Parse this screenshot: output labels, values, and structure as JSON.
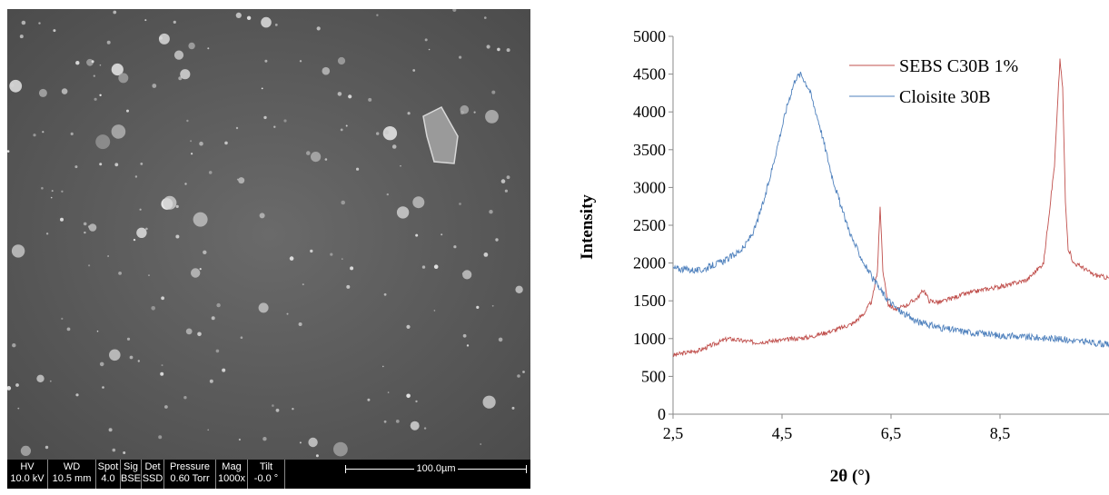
{
  "sem": {
    "columns": [
      {
        "header": "HV",
        "value": "10.0 kV"
      },
      {
        "header": "WD",
        "value": "10.5 mm"
      },
      {
        "header": "Spot",
        "value": "4.0"
      },
      {
        "header": "Sig",
        "value": "BSE"
      },
      {
        "header": "Det",
        "value": "SSD"
      },
      {
        "header": "Pressure",
        "value": "0.60 Torr"
      },
      {
        "header": "Mag",
        "value": "1000x"
      },
      {
        "header": "Tilt",
        "value": "-0.0 °"
      }
    ],
    "scale_bar": "100.0µm"
  },
  "chart_data": {
    "type": "line",
    "title": "",
    "xlabel": "2θ (°)",
    "ylabel": "Intensity",
    "xlim": [
      2.5,
      10.5
    ],
    "ylim": [
      0,
      5000
    ],
    "xticks": [
      "2,5",
      "4,5",
      "6,5",
      "8,5"
    ],
    "xtick_values": [
      2.5,
      4.5,
      6.5,
      8.5
    ],
    "yticks": [
      0,
      500,
      1000,
      1500,
      2000,
      2500,
      3000,
      3500,
      4000,
      4500,
      5000
    ],
    "legend_position": "top-right",
    "series": [
      {
        "name": "SEBS C30B 1%",
        "color": "#c0504d",
        "x": [
          2.5,
          3.0,
          3.5,
          4.0,
          4.5,
          5.0,
          5.5,
          5.8,
          6.0,
          6.15,
          6.25,
          6.3,
          6.35,
          6.45,
          6.6,
          6.8,
          7.0,
          7.1,
          7.2,
          7.4,
          7.8,
          8.2,
          8.6,
          9.0,
          9.3,
          9.5,
          9.6,
          9.65,
          9.7,
          9.75,
          9.85,
          10.0,
          10.2,
          10.5
        ],
        "y": [
          780,
          850,
          1000,
          950,
          980,
          1020,
          1120,
          1200,
          1330,
          1500,
          1900,
          2750,
          1900,
          1450,
          1380,
          1450,
          1550,
          1650,
          1500,
          1480,
          1580,
          1650,
          1700,
          1780,
          2000,
          3300,
          4700,
          4300,
          2800,
          2200,
          2000,
          1950,
          1850,
          1800
        ]
      },
      {
        "name": "Cloisite 30B",
        "color": "#4f81bd",
        "x": [
          2.5,
          3.0,
          3.5,
          3.8,
          4.0,
          4.2,
          4.4,
          4.6,
          4.75,
          4.85,
          5.0,
          5.2,
          5.4,
          5.6,
          5.8,
          6.0,
          6.2,
          6.4,
          6.6,
          6.8,
          7.0,
          7.5,
          8.0,
          8.5,
          9.0,
          9.5,
          10.0,
          10.5
        ],
        "y": [
          1930,
          1900,
          2050,
          2200,
          2450,
          2900,
          3500,
          4100,
          4450,
          4500,
          4300,
          3800,
          3200,
          2700,
          2300,
          2000,
          1750,
          1550,
          1400,
          1300,
          1220,
          1130,
          1080,
          1040,
          1020,
          1000,
          960,
          920
        ]
      }
    ]
  }
}
